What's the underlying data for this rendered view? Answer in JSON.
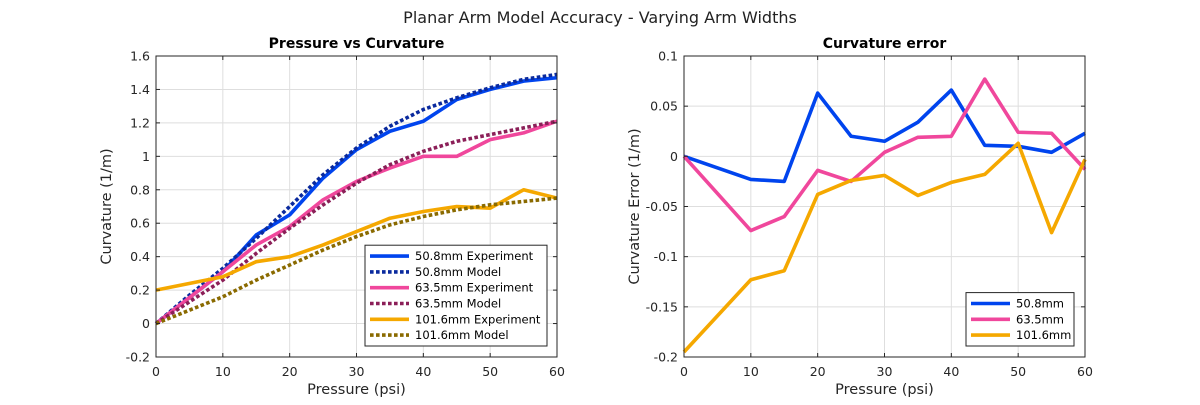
{
  "figure": {
    "suptitle": "Planar Arm Model Accuracy - Varying Arm Widths"
  },
  "chart_data": [
    {
      "type": "line",
      "title": "Pressure vs Curvature",
      "xlabel": "Pressure (psi)",
      "ylabel": "Curvature (1/m)",
      "xlim": [
        0,
        60
      ],
      "ylim": [
        -0.2,
        1.6
      ],
      "xticks": [
        0,
        10,
        20,
        30,
        40,
        50,
        60
      ],
      "xtick_labels": [
        "0",
        "10",
        "20",
        "30",
        "40",
        "50",
        "60"
      ],
      "yticks": [
        -0.2,
        0,
        0.2,
        0.4,
        0.6,
        0.8,
        1,
        1.2,
        1.4,
        1.6
      ],
      "ytick_labels": [
        "-0.2",
        "0",
        "0.2",
        "0.4",
        "0.6",
        "0.8",
        "1",
        "1.2",
        "1.4",
        "1.6"
      ],
      "grid": true,
      "legend_position": "bottom-right",
      "series": [
        {
          "name": "50.8mm Experiment",
          "color": "#0044ee",
          "dash": "solid",
          "x": [
            0,
            10,
            15,
            20,
            25,
            30,
            35,
            40,
            45,
            50,
            55,
            60
          ],
          "y": [
            0,
            0.31,
            0.53,
            0.65,
            0.87,
            1.04,
            1.15,
            1.21,
            1.34,
            1.4,
            1.45,
            1.47
          ]
        },
        {
          "name": "50.8mm Model",
          "color": "#0a2a9e",
          "dash": "dotted",
          "x": [
            0,
            5,
            10,
            15,
            20,
            25,
            30,
            35,
            40,
            45,
            50,
            55,
            60
          ],
          "y": [
            0,
            0.17,
            0.33,
            0.51,
            0.7,
            0.89,
            1.05,
            1.18,
            1.28,
            1.35,
            1.41,
            1.46,
            1.49
          ]
        },
        {
          "name": "63.5mm Experiment",
          "color": "#f0479c",
          "dash": "solid",
          "x": [
            0,
            10,
            15,
            20,
            25,
            30,
            35,
            40,
            45,
            50,
            55,
            60
          ],
          "y": [
            0,
            0.31,
            0.47,
            0.58,
            0.74,
            0.85,
            0.93,
            1.0,
            1.0,
            1.1,
            1.14,
            1.21
          ]
        },
        {
          "name": "63.5mm Model",
          "color": "#8b1f58",
          "dash": "dotted",
          "x": [
            0,
            5,
            10,
            15,
            20,
            25,
            30,
            35,
            40,
            45,
            50,
            55,
            60
          ],
          "y": [
            0,
            0.13,
            0.26,
            0.42,
            0.57,
            0.71,
            0.84,
            0.95,
            1.03,
            1.09,
            1.13,
            1.17,
            1.21
          ]
        },
        {
          "name": "101.6mm Experiment",
          "color": "#f5a800",
          "dash": "solid",
          "x": [
            0,
            10,
            15,
            20,
            25,
            30,
            35,
            40,
            45,
            50,
            55,
            60
          ],
          "y": [
            0.2,
            0.28,
            0.37,
            0.4,
            0.47,
            0.55,
            0.63,
            0.67,
            0.7,
            0.69,
            0.8,
            0.75
          ]
        },
        {
          "name": "101.6mm Model",
          "color": "#8a6a00",
          "dash": "dotted",
          "x": [
            0,
            5,
            10,
            15,
            20,
            25,
            30,
            35,
            40,
            45,
            50,
            55,
            60
          ],
          "y": [
            0,
            0.08,
            0.16,
            0.26,
            0.35,
            0.44,
            0.52,
            0.59,
            0.64,
            0.68,
            0.71,
            0.73,
            0.75
          ]
        }
      ]
    },
    {
      "type": "line",
      "title": "Curvature error",
      "xlabel": "Pressure (psi)",
      "ylabel": "Curvature Error (1/m)",
      "xlim": [
        0,
        60
      ],
      "ylim": [
        -0.2,
        0.1
      ],
      "xticks": [
        0,
        10,
        20,
        30,
        40,
        50,
        60
      ],
      "xtick_labels": [
        "0",
        "10",
        "20",
        "30",
        "40",
        "50",
        "60"
      ],
      "yticks": [
        -0.2,
        -0.15,
        -0.1,
        -0.05,
        0,
        0.05,
        0.1
      ],
      "ytick_labels": [
        "-0.2",
        "-0.15",
        "-0.1",
        "-0.05",
        "0",
        "0.05",
        "0.1"
      ],
      "grid": true,
      "legend_position": "bottom-right",
      "series": [
        {
          "name": "50.8mm",
          "color": "#0044ee",
          "dash": "solid",
          "x": [
            0,
            10,
            15,
            20,
            25,
            30,
            35,
            40,
            45,
            50,
            55,
            60
          ],
          "y": [
            0,
            -0.023,
            -0.025,
            0.063,
            0.02,
            0.015,
            0.034,
            0.066,
            0.011,
            0.01,
            0.004,
            0.023
          ]
        },
        {
          "name": "63.5mm",
          "color": "#f0479c",
          "dash": "solid",
          "x": [
            0,
            10,
            15,
            20,
            25,
            30,
            35,
            40,
            45,
            50,
            55,
            60
          ],
          "y": [
            0,
            -0.074,
            -0.06,
            -0.014,
            -0.025,
            0.004,
            0.019,
            0.02,
            0.077,
            0.024,
            0.023,
            -0.013
          ]
        },
        {
          "name": "101.6mm",
          "color": "#f5a800",
          "dash": "solid",
          "x": [
            0,
            10,
            15,
            20,
            25,
            30,
            35,
            40,
            45,
            50,
            55,
            60
          ],
          "y": [
            -0.195,
            -0.123,
            -0.114,
            -0.038,
            -0.024,
            -0.019,
            -0.039,
            -0.026,
            -0.018,
            0.013,
            -0.076,
            -0.003
          ]
        }
      ]
    }
  ]
}
